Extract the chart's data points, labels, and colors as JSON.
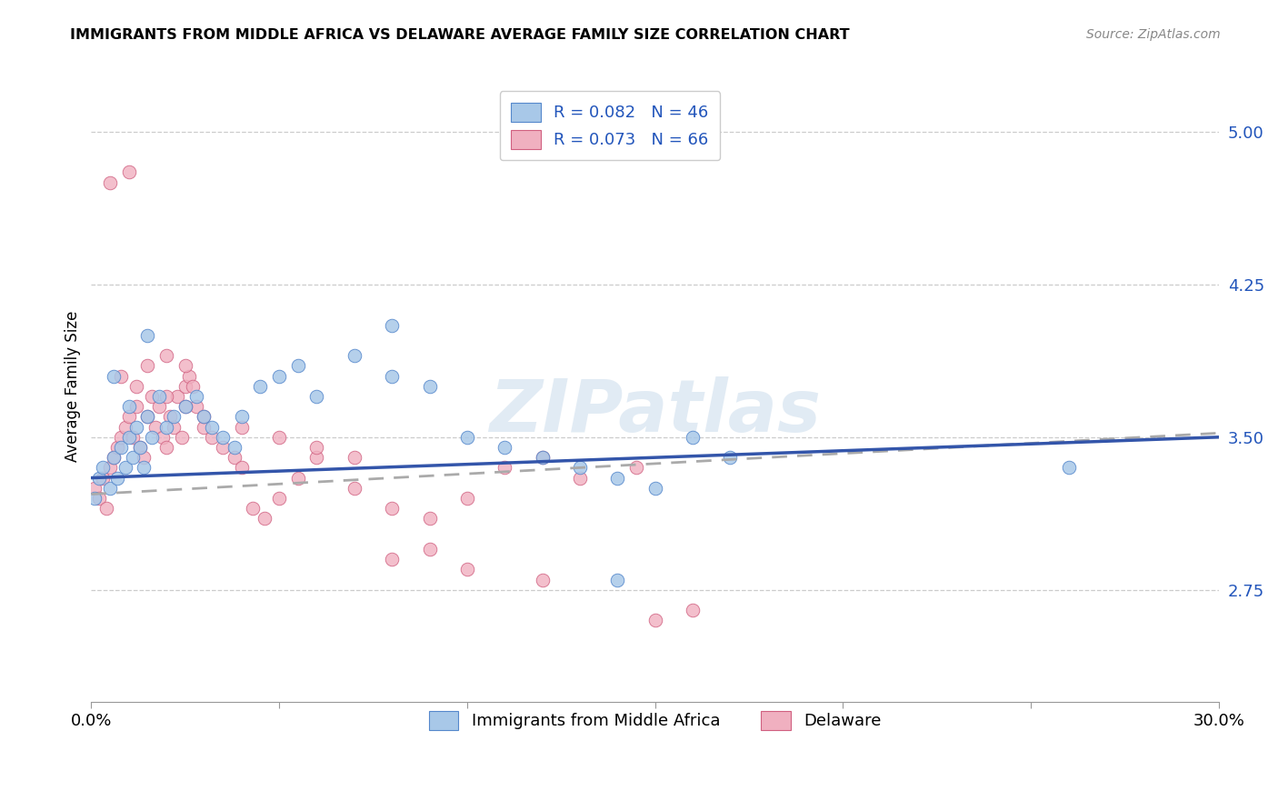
{
  "title": "IMMIGRANTS FROM MIDDLE AFRICA VS DELAWARE AVERAGE FAMILY SIZE CORRELATION CHART",
  "source": "Source: ZipAtlas.com",
  "ylabel": "Average Family Size",
  "yticks": [
    2.75,
    3.5,
    4.25,
    5.0
  ],
  "xlim": [
    0.0,
    0.3
  ],
  "ylim": [
    2.2,
    5.3
  ],
  "legend_r1": "R = 0.082",
  "legend_n1": "N = 46",
  "legend_r2": "R = 0.073",
  "legend_n2": "N = 66",
  "blue_scatter_color": "#a8c8e8",
  "blue_edge_color": "#5588cc",
  "pink_scatter_color": "#f0b0c0",
  "pink_edge_color": "#d06080",
  "blue_line_color": "#3355aa",
  "gray_dash_color": "#aaaaaa",
  "watermark": "ZIPatlas",
  "blue_x": [
    0.001,
    0.002,
    0.003,
    0.005,
    0.006,
    0.007,
    0.008,
    0.009,
    0.01,
    0.011,
    0.012,
    0.013,
    0.014,
    0.015,
    0.016,
    0.018,
    0.02,
    0.022,
    0.025,
    0.028,
    0.03,
    0.032,
    0.035,
    0.038,
    0.04,
    0.045,
    0.05,
    0.055,
    0.06,
    0.07,
    0.08,
    0.09,
    0.1,
    0.11,
    0.12,
    0.13,
    0.14,
    0.15,
    0.16,
    0.17,
    0.006,
    0.01,
    0.015,
    0.26,
    0.14,
    0.08
  ],
  "blue_y": [
    3.2,
    3.3,
    3.35,
    3.25,
    3.4,
    3.3,
    3.45,
    3.35,
    3.5,
    3.4,
    3.55,
    3.45,
    3.35,
    3.6,
    3.5,
    3.7,
    3.55,
    3.6,
    3.65,
    3.7,
    3.6,
    3.55,
    3.5,
    3.45,
    3.6,
    3.75,
    3.8,
    3.85,
    3.7,
    3.9,
    3.8,
    3.75,
    3.5,
    3.45,
    3.4,
    3.35,
    3.3,
    3.25,
    3.5,
    3.4,
    3.8,
    3.65,
    4.0,
    3.35,
    2.8,
    4.05
  ],
  "pink_x": [
    0.001,
    0.002,
    0.003,
    0.004,
    0.005,
    0.006,
    0.007,
    0.008,
    0.009,
    0.01,
    0.011,
    0.012,
    0.013,
    0.014,
    0.015,
    0.016,
    0.017,
    0.018,
    0.019,
    0.02,
    0.021,
    0.022,
    0.023,
    0.024,
    0.025,
    0.026,
    0.027,
    0.028,
    0.03,
    0.032,
    0.035,
    0.038,
    0.04,
    0.043,
    0.046,
    0.05,
    0.055,
    0.06,
    0.07,
    0.08,
    0.09,
    0.1,
    0.11,
    0.12,
    0.13,
    0.005,
    0.01,
    0.015,
    0.02,
    0.025,
    0.03,
    0.04,
    0.05,
    0.06,
    0.07,
    0.08,
    0.09,
    0.1,
    0.12,
    0.145,
    0.008,
    0.012,
    0.02,
    0.025,
    0.15,
    0.16
  ],
  "pink_y": [
    3.25,
    3.2,
    3.3,
    3.15,
    3.35,
    3.4,
    3.45,
    3.5,
    3.55,
    3.6,
    3.5,
    3.65,
    3.45,
    3.4,
    3.6,
    3.7,
    3.55,
    3.65,
    3.5,
    3.45,
    3.6,
    3.55,
    3.7,
    3.5,
    3.75,
    3.8,
    3.75,
    3.65,
    3.55,
    3.5,
    3.45,
    3.4,
    3.35,
    3.15,
    3.1,
    3.2,
    3.3,
    3.4,
    3.25,
    3.15,
    3.1,
    3.2,
    3.35,
    3.4,
    3.3,
    4.75,
    4.8,
    3.85,
    3.9,
    3.85,
    3.6,
    3.55,
    3.5,
    3.45,
    3.4,
    2.9,
    2.95,
    2.85,
    2.8,
    3.35,
    3.8,
    3.75,
    3.7,
    3.65,
    2.6,
    2.65
  ],
  "blue_line_x0": 0.0,
  "blue_line_x1": 0.3,
  "blue_line_y0": 3.3,
  "blue_line_y1": 3.5,
  "gray_line_x0": 0.0,
  "gray_line_x1": 0.3,
  "gray_line_y0": 3.22,
  "gray_line_y1": 3.52
}
